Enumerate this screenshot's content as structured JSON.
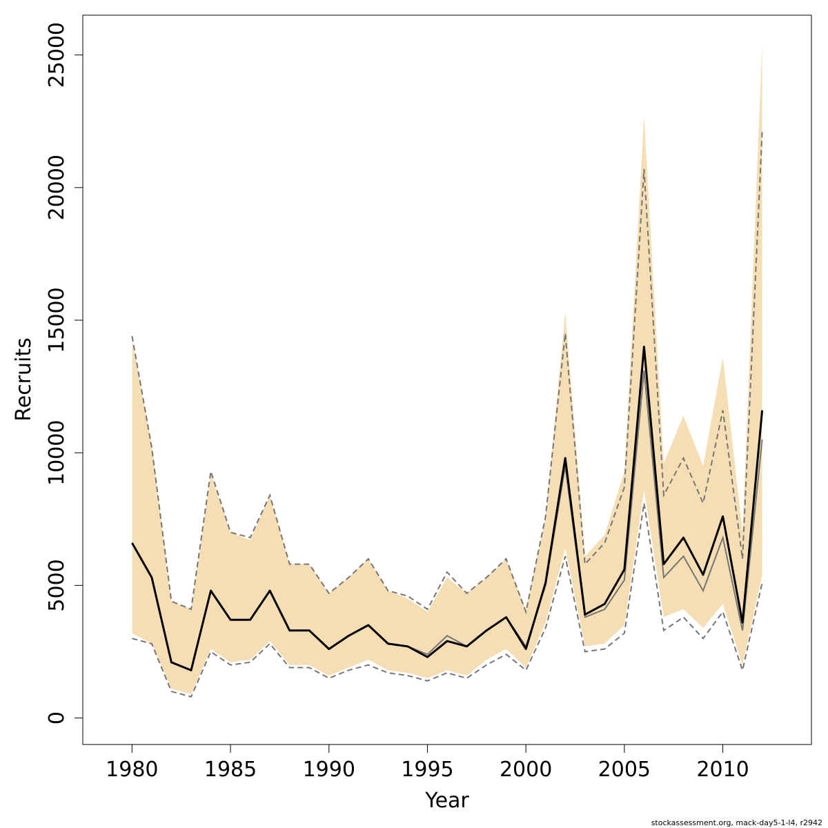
{
  "chart_data": {
    "type": "line",
    "xlabel": "Year",
    "ylabel": "Recruits",
    "xlim": [
      1977.5,
      2014.5
    ],
    "ylim": [
      -1000,
      26500
    ],
    "x_ticks": [
      1980,
      1985,
      1990,
      1995,
      2000,
      2005,
      2010
    ],
    "y_ticks": [
      0,
      5000,
      10000,
      15000,
      20000,
      25000
    ],
    "grid": false,
    "legend": "none",
    "credit": "stockassessment.org, mack-day5-1-l4, r2942",
    "colors": {
      "band": "#F5DEB3",
      "main_line": "#000000",
      "secondary_line": "#757575",
      "dashed_ci": "#757575"
    },
    "x": [
      1980,
      1981,
      1982,
      1983,
      1984,
      1985,
      1986,
      1987,
      1988,
      1989,
      1990,
      1991,
      1992,
      1993,
      1994,
      1995,
      1996,
      1997,
      1998,
      1999,
      2000,
      2001,
      2002,
      2003,
      2004,
      2005,
      2006,
      2007,
      2008,
      2009,
      2010,
      2011,
      2012
    ],
    "series": [
      {
        "role": "band_upper",
        "values": [
          14300,
          10300,
          4400,
          4100,
          9200,
          7000,
          6700,
          8400,
          5800,
          5800,
          4700,
          5300,
          6000,
          4800,
          4500,
          4000,
          5300,
          4700,
          5300,
          6000,
          4100,
          7600,
          15300,
          6100,
          6900,
          9300,
          22700,
          9600,
          11400,
          9500,
          13600,
          7000,
          25400
        ]
      },
      {
        "role": "band_lower",
        "values": [
          3200,
          2800,
          1100,
          900,
          2600,
          2100,
          2200,
          2900,
          2000,
          2000,
          1600,
          1900,
          2200,
          1800,
          1700,
          1500,
          1800,
          1600,
          2200,
          2600,
          1900,
          3600,
          6400,
          2700,
          2800,
          3500,
          8600,
          3800,
          4100,
          3400,
          4300,
          2000,
          5400
        ]
      },
      {
        "role": "dashed_upper",
        "values": [
          14400,
          10200,
          4400,
          4100,
          9300,
          7000,
          6800,
          8400,
          5800,
          5800,
          4700,
          5300,
          6000,
          4800,
          4600,
          4100,
          5500,
          4700,
          5300,
          6000,
          4000,
          7600,
          14500,
          5800,
          6600,
          8700,
          20700,
          8400,
          9800,
          8100,
          11600,
          6000,
          22100
        ]
      },
      {
        "role": "dashed_lower",
        "values": [
          3000,
          2800,
          1000,
          800,
          2500,
          2000,
          2100,
          2800,
          1900,
          1900,
          1500,
          1800,
          2000,
          1700,
          1600,
          1400,
          1700,
          1500,
          2000,
          2400,
          1800,
          3400,
          6100,
          2500,
          2600,
          3200,
          8100,
          3300,
          3800,
          3000,
          4000,
          1800,
          5100
        ]
      },
      {
        "role": "secondary_line",
        "values": [
          6600,
          5300,
          2100,
          1800,
          4800,
          3700,
          3700,
          4800,
          3300,
          3300,
          2600,
          3100,
          3500,
          2800,
          2700,
          2400,
          3100,
          2700,
          3300,
          3800,
          2700,
          5000,
          9500,
          3800,
          4100,
          5200,
          13100,
          5300,
          6100,
          4800,
          6800,
          3300,
          10500
        ]
      },
      {
        "role": "main_line",
        "values": [
          6600,
          5300,
          2100,
          1800,
          4800,
          3700,
          3700,
          4800,
          3300,
          3300,
          2600,
          3100,
          3500,
          2800,
          2700,
          2300,
          2900,
          2700,
          3300,
          3800,
          2600,
          5100,
          9800,
          3900,
          4300,
          5600,
          14000,
          5800,
          6800,
          5400,
          7600,
          3600,
          11600
        ]
      }
    ]
  }
}
